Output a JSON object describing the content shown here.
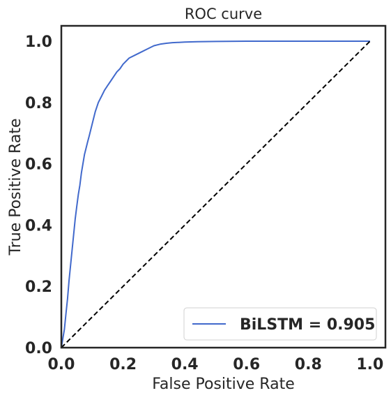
{
  "chart_data": {
    "type": "line",
    "title": "ROC curve",
    "xlabel": "False Positive Rate",
    "ylabel": "True Positive Rate",
    "xlim": [
      0.0,
      1.05
    ],
    "ylim": [
      0.0,
      1.05
    ],
    "xticks": [
      "0.0",
      "0.2",
      "0.4",
      "0.6",
      "0.8",
      "1.0"
    ],
    "yticks": [
      "0.0",
      "0.2",
      "0.4",
      "0.6",
      "0.8",
      "1.0"
    ],
    "grid": false,
    "legend_position": "lower-right",
    "series": [
      {
        "name": "BiLSTM = 0.905",
        "color": "#4169cc",
        "style": "solid",
        "x": [
          0.0,
          0.005,
          0.01,
          0.015,
          0.02,
          0.025,
          0.03,
          0.035,
          0.04,
          0.045,
          0.05,
          0.055,
          0.06,
          0.065,
          0.07,
          0.075,
          0.08,
          0.085,
          0.09,
          0.1,
          0.11,
          0.12,
          0.13,
          0.14,
          0.15,
          0.16,
          0.17,
          0.18,
          0.19,
          0.2,
          0.21,
          0.22,
          0.24,
          0.26,
          0.28,
          0.3,
          0.32,
          0.34,
          0.36,
          0.38,
          0.4,
          0.44,
          0.5,
          0.6,
          0.7,
          0.8,
          0.9,
          1.0
        ],
        "y": [
          0.0,
          0.03,
          0.06,
          0.11,
          0.16,
          0.22,
          0.27,
          0.32,
          0.37,
          0.42,
          0.46,
          0.5,
          0.53,
          0.57,
          0.6,
          0.63,
          0.65,
          0.67,
          0.69,
          0.73,
          0.77,
          0.8,
          0.82,
          0.84,
          0.855,
          0.87,
          0.885,
          0.9,
          0.91,
          0.925,
          0.935,
          0.945,
          0.955,
          0.965,
          0.975,
          0.985,
          0.99,
          0.993,
          0.995,
          0.996,
          0.997,
          0.998,
          0.999,
          1.0,
          1.0,
          1.0,
          1.0,
          1.0
        ]
      },
      {
        "name": "",
        "color": "#000000",
        "style": "dashed",
        "x": [
          0.0,
          1.0
        ],
        "y": [
          0.0,
          1.0
        ]
      }
    ]
  }
}
